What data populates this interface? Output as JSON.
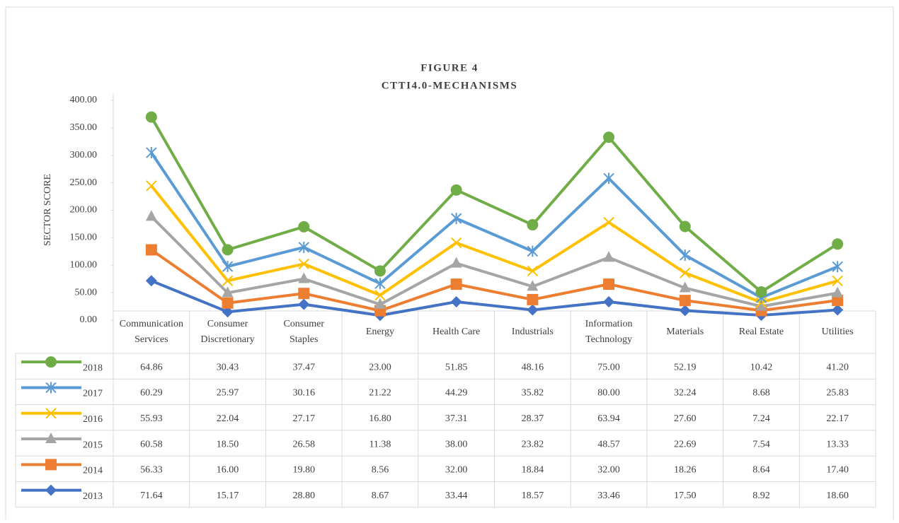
{
  "chart_data": {
    "type": "stacked_line",
    "title": "FIGURE 4",
    "subtitle": "CTTI4.0-MECHANISMS",
    "y_label": "SECTOR SCORE",
    "categories": [
      "Communication Services",
      "Consumer Discretionary",
      "Consumer Staples",
      "Energy",
      "Health Care",
      "Industrials",
      "Information Technology",
      "Materials",
      "Real Estate",
      "Utilities"
    ],
    "ylim": [
      0,
      400
    ],
    "yticks": [
      {
        "value": 0,
        "label": "0.00"
      },
      {
        "value": 50,
        "label": "50.00"
      },
      {
        "value": 100,
        "label": "100.00"
      },
      {
        "value": 150,
        "label": "150.00"
      },
      {
        "value": 200,
        "label": "200.00"
      },
      {
        "value": 250,
        "label": "250.00"
      },
      {
        "value": 300,
        "label": "300.00"
      },
      {
        "value": 350,
        "label": "350.00"
      },
      {
        "value": 400,
        "label": "400.00"
      }
    ],
    "series": [
      {
        "name": "2018",
        "color": "#70ad47",
        "marker": "circle",
        "values": [
          64.86,
          30.43,
          37.47,
          23.0,
          51.85,
          48.16,
          75.0,
          52.19,
          10.42,
          41.2
        ],
        "value_labels": [
          "64.86",
          "30.43",
          "37.47",
          "23.00",
          "51.85",
          "48.16",
          "75.00",
          "52.19",
          "10.42",
          "41.20"
        ]
      },
      {
        "name": "2017",
        "color": "#5b9bd5",
        "marker": "star",
        "values": [
          60.29,
          25.97,
          30.16,
          21.22,
          44.29,
          35.82,
          80.0,
          32.24,
          8.68,
          25.83
        ],
        "value_labels": [
          "60.29",
          "25.97",
          "30.16",
          "21.22",
          "44.29",
          "35.82",
          "80.00",
          "32.24",
          "8.68",
          "25.83"
        ]
      },
      {
        "name": "2016",
        "color": "#ffc000",
        "marker": "x",
        "values": [
          55.93,
          22.04,
          27.17,
          16.8,
          37.31,
          28.37,
          63.94,
          27.6,
          7.24,
          22.17
        ],
        "value_labels": [
          "55.93",
          "22.04",
          "27.17",
          "16.80",
          "37.31",
          "28.37",
          "63.94",
          "27.60",
          "7.24",
          "22.17"
        ]
      },
      {
        "name": "2015",
        "color": "#a5a5a5",
        "marker": "triangle",
        "values": [
          60.58,
          18.5,
          26.58,
          11.38,
          38.0,
          23.82,
          48.57,
          22.69,
          7.54,
          13.33
        ],
        "value_labels": [
          "60.58",
          "18.50",
          "26.58",
          "11.38",
          "38.00",
          "23.82",
          "48.57",
          "22.69",
          "7.54",
          "13.33"
        ]
      },
      {
        "name": "2014",
        "color": "#ed7d31",
        "marker": "square",
        "values": [
          56.33,
          16.0,
          19.8,
          8.56,
          32.0,
          18.84,
          32.0,
          18.26,
          8.64,
          17.4
        ],
        "value_labels": [
          "56.33",
          "16.00",
          "19.80",
          "8.56",
          "32.00",
          "18.84",
          "32.00",
          "18.26",
          "8.64",
          "17.40"
        ]
      },
      {
        "name": "2013",
        "color": "#4472c4",
        "marker": "diamond",
        "values": [
          71.64,
          15.17,
          28.8,
          8.67,
          33.44,
          18.57,
          33.46,
          17.5,
          8.92,
          18.6
        ],
        "value_labels": [
          "71.64",
          "15.17",
          "28.80",
          "8.67",
          "33.44",
          "18.57",
          "33.46",
          "17.50",
          "8.92",
          "18.60"
        ]
      }
    ]
  }
}
